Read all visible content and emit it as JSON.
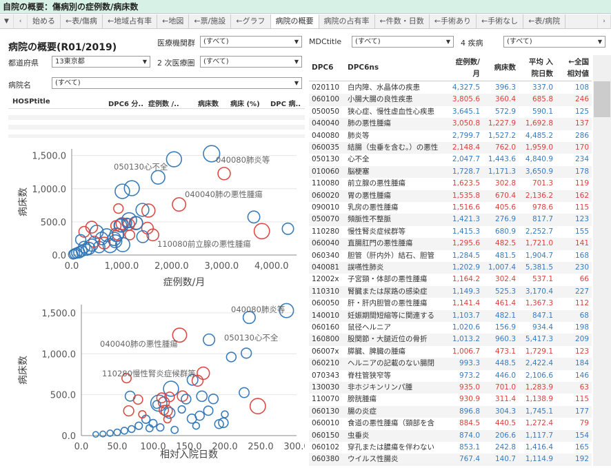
{
  "window": {
    "title": "自院の概要：傷病別の症例数/病床数"
  },
  "tabs": [
    "始める",
    "←表/傷病",
    "←地域占有率",
    "←地図",
    "←票/施設",
    "←グラフ",
    "病院の概要",
    "病院の占有率",
    "←件数・日数",
    "←手術あり",
    "←手術なし",
    "←表/病院"
  ],
  "active_tab": "病院の概要",
  "page": {
    "title": "病院の概要(R01/2019)"
  },
  "filters": {
    "institution_group": {
      "label": "医療機関群",
      "value": "(すべて)"
    },
    "mdc": {
      "label": "MDCtitle",
      "value": "(すべて)"
    },
    "four_diseases": {
      "label": "4 疾病",
      "value": "(すべて)"
    },
    "prefecture": {
      "label": "都道府県",
      "value": "13東京都"
    },
    "secondary_area": {
      "label": "2 次医療圏",
      "value": "(すべて)"
    },
    "hospital": {
      "label": "病院名",
      "value": "(すべて)"
    }
  },
  "hosp_table": {
    "headers": [
      "HOSPtitle",
      "DPC6 分..",
      "症例数 /..",
      "病床数",
      "病床 (%)",
      "DPC 病.."
    ]
  },
  "dpc_table": {
    "headers": {
      "c1": "DPC6",
      "c2": "DPC6ns",
      "cases": "症例数/\n月",
      "beds": "病床数",
      "avg_days": "平均 入\n院日数",
      "rel": "←全国\n相対値"
    },
    "rows": [
      [
        "020110",
        "白内障、水晶体の疾患",
        "4,327.5",
        "396.3",
        "337.0",
        "108",
        "b"
      ],
      [
        "060100",
        "小腸大腸の良性疾患",
        "3,805.6",
        "360.4",
        "685.8",
        "246",
        "r"
      ],
      [
        "050050",
        "狭心症、慢性虚血性心疾患",
        "3,645.1",
        "572.9",
        "590.1",
        "125",
        "b"
      ],
      [
        "040040",
        "肺の悪性腫瘍",
        "3,050.8",
        "1,227.9",
        "1,692.8",
        "137",
        "r"
      ],
      [
        "040080",
        "肺炎等",
        "2,799.7",
        "1,527.2",
        "4,485.2",
        "286",
        "b"
      ],
      [
        "060035",
        "結腸（虫垂を含む。）の悪性",
        "2,148.4",
        "762.0",
        "1,959.0",
        "170",
        "r"
      ],
      [
        "050130",
        "心不全",
        "2,047.7",
        "1,443.6",
        "4,840.9",
        "234",
        "b"
      ],
      [
        "010060",
        "脳梗塞",
        "1,728.7",
        "1,171.3",
        "3,650.9",
        "178",
        "b"
      ],
      [
        "110080",
        "前立腺の悪性腫瘍",
        "1,623.5",
        "302.8",
        "701.3",
        "119",
        "r"
      ],
      [
        "060020",
        "胃の悪性腫瘍",
        "1,535.8",
        "670.4",
        "2,136.2",
        "162",
        "r"
      ],
      [
        "090010",
        "乳房の悪性腫瘍",
        "1,516.6",
        "405.6",
        "978.6",
        "115",
        "r"
      ],
      [
        "050070",
        "頻脈性不整脈",
        "1,421.3",
        "276.9",
        "817.7",
        "123",
        "b"
      ],
      [
        "110280",
        "慢性腎炎症候群等",
        "1,415.3",
        "680.9",
        "2,252.7",
        "155",
        "b"
      ],
      [
        "060040",
        "直腸肛門の悪性腫瘍",
        "1,295.6",
        "482.5",
        "1,721.0",
        "141",
        "r"
      ],
      [
        "060340",
        "胆管（肝内外）結石、胆管",
        "1,284.5",
        "481.5",
        "1,904.7",
        "168",
        "b"
      ],
      [
        "040081",
        "誤嚥性肺炎",
        "1,202.9",
        "1,007.4",
        "5,381.5",
        "230",
        "b"
      ],
      [
        "12002x",
        "子宮頸・体部の悪性腫瘍",
        "1,164.2",
        "302.4",
        "537.1",
        "66",
        "r"
      ],
      [
        "110310",
        "腎臓または尿路の感染症",
        "1,149.3",
        "525.3",
        "3,170.4",
        "227",
        "b"
      ],
      [
        "060050",
        "肝・肝内胆管の悪性腫瘍",
        "1,141.4",
        "461.4",
        "1,367.3",
        "112",
        "r"
      ],
      [
        "140010",
        "妊娠期間短縮等に関連する",
        "1,103.7",
        "482.1",
        "847.1",
        "68",
        "b"
      ],
      [
        "060160",
        "鼠径ヘルニア",
        "1,020.6",
        "156.9",
        "934.4",
        "198",
        "b"
      ],
      [
        "160800",
        "股関節・大腿近位の骨折",
        "1,013.2",
        "960.3",
        "5,417.3",
        "209",
        "b"
      ],
      [
        "06007x",
        "膵臓、脾臓の腫瘍",
        "1,006.7",
        "473.1",
        "1,729.1",
        "123",
        "r"
      ],
      [
        "060210",
        "ヘルニアの記載のない腸閉",
        "993.3",
        "448.5",
        "2,422.4",
        "184",
        "b"
      ],
      [
        "070343",
        "脊柱管狭窄等",
        "973.2",
        "446.0",
        "2,106.6",
        "146",
        "b"
      ],
      [
        "130030",
        "非ホジキンリンパ腫",
        "935.0",
        "701.0",
        "1,283.9",
        "63",
        "r"
      ],
      [
        "110070",
        "膀胱腫瘍",
        "930.9",
        "311.4",
        "1,138.9",
        "115",
        "r"
      ],
      [
        "060130",
        "腸の炎症",
        "896.8",
        "304.3",
        "1,745.1",
        "177",
        "b"
      ],
      [
        "060010",
        "食道の悪性腫瘍（頸部を含",
        "884.5",
        "440.5",
        "1,272.4",
        "79",
        "r"
      ],
      [
        "060150",
        "虫垂炎",
        "874.0",
        "206.6",
        "1,117.7",
        "154",
        "b"
      ],
      [
        "060102",
        "穿孔または膿瘍を伴わない",
        "853.1",
        "242.8",
        "1,416.4",
        "165",
        "b"
      ],
      [
        "060380",
        "ウイルス性腸炎",
        "767.4",
        "140.7",
        "1,114.9",
        "192",
        "b"
      ]
    ]
  },
  "chart_data": [
    {
      "type": "scatter",
      "xlabel": "症例数/月",
      "ylabel": "病床数",
      "xlim": [
        0,
        4500
      ],
      "ylim": [
        0,
        1600
      ],
      "xticks": [
        "0.0",
        "1,000.0",
        "2,000.0",
        "3,000.0",
        "4,000.0"
      ],
      "yticks": [
        "0.0",
        "500.0",
        "1,000.0",
        "1,500.0"
      ],
      "annotations": [
        "050130心不全",
        "040080肺炎等",
        "040040肺の悪性腫瘍",
        "110080前立腺の悪性腫瘍"
      ],
      "points": [
        {
          "x": 4327.5,
          "y": 396.3,
          "s": 108,
          "c": "b"
        },
        {
          "x": 3805.6,
          "y": 360.4,
          "s": 246,
          "c": "r"
        },
        {
          "x": 3645.1,
          "y": 572.9,
          "s": 125,
          "c": "b"
        },
        {
          "x": 3050.8,
          "y": 1227.9,
          "s": 137,
          "c": "r"
        },
        {
          "x": 2799.7,
          "y": 1527.2,
          "s": 286,
          "c": "b"
        },
        {
          "x": 2148.4,
          "y": 762.0,
          "s": 170,
          "c": "r"
        },
        {
          "x": 2047.7,
          "y": 1443.6,
          "s": 234,
          "c": "b"
        },
        {
          "x": 1728.7,
          "y": 1171.3,
          "s": 178,
          "c": "b"
        },
        {
          "x": 1623.5,
          "y": 302.8,
          "s": 119,
          "c": "r"
        },
        {
          "x": 1535.8,
          "y": 670.4,
          "s": 162,
          "c": "r"
        },
        {
          "x": 1516.6,
          "y": 405.6,
          "s": 115,
          "c": "r"
        },
        {
          "x": 1421.3,
          "y": 276.9,
          "s": 123,
          "c": "b"
        },
        {
          "x": 1415.3,
          "y": 680.9,
          "s": 155,
          "c": "b"
        },
        {
          "x": 1295.6,
          "y": 482.5,
          "s": 141,
          "c": "r"
        },
        {
          "x": 1284.5,
          "y": 481.5,
          "s": 168,
          "c": "b"
        },
        {
          "x": 1202.9,
          "y": 1007.4,
          "s": 230,
          "c": "b"
        },
        {
          "x": 1164.2,
          "y": 302.4,
          "s": 66,
          "c": "r"
        },
        {
          "x": 1149.3,
          "y": 525.3,
          "s": 227,
          "c": "b"
        },
        {
          "x": 1141.4,
          "y": 461.4,
          "s": 112,
          "c": "r"
        },
        {
          "x": 1103.7,
          "y": 482.1,
          "s": 68,
          "c": "b"
        },
        {
          "x": 1020.6,
          "y": 156.9,
          "s": 198,
          "c": "b"
        },
        {
          "x": 1013.2,
          "y": 960.3,
          "s": 209,
          "c": "b"
        },
        {
          "x": 1006.7,
          "y": 473.1,
          "s": 123,
          "c": "r"
        },
        {
          "x": 993.3,
          "y": 448.5,
          "s": 184,
          "c": "b"
        },
        {
          "x": 973.2,
          "y": 446.0,
          "s": 146,
          "c": "b"
        },
        {
          "x": 935.0,
          "y": 701.0,
          "s": 63,
          "c": "r"
        },
        {
          "x": 930.9,
          "y": 311.4,
          "s": 115,
          "c": "r"
        },
        {
          "x": 896.8,
          "y": 304.3,
          "s": 177,
          "c": "b"
        },
        {
          "x": 884.5,
          "y": 440.5,
          "s": 79,
          "c": "r"
        },
        {
          "x": 874.0,
          "y": 206.6,
          "s": 154,
          "c": "b"
        },
        {
          "x": 853.1,
          "y": 242.8,
          "s": 165,
          "c": "b"
        },
        {
          "x": 767.4,
          "y": 140.7,
          "s": 192,
          "c": "b"
        },
        {
          "x": 700,
          "y": 300,
          "s": 150,
          "c": "b"
        },
        {
          "x": 650,
          "y": 180,
          "s": 120,
          "c": "r"
        },
        {
          "x": 600,
          "y": 250,
          "s": 140,
          "c": "b"
        },
        {
          "x": 550,
          "y": 120,
          "s": 110,
          "c": "b"
        },
        {
          "x": 500,
          "y": 350,
          "s": 160,
          "c": "b"
        },
        {
          "x": 450,
          "y": 200,
          "s": 100,
          "c": "r"
        },
        {
          "x": 400,
          "y": 150,
          "s": 130,
          "c": "b"
        },
        {
          "x": 350,
          "y": 100,
          "s": 120,
          "c": "b"
        },
        {
          "x": 300,
          "y": 80,
          "s": 100,
          "c": "b"
        },
        {
          "x": 250,
          "y": 120,
          "s": 110,
          "c": "b"
        },
        {
          "x": 200,
          "y": 60,
          "s": 90,
          "c": "b"
        },
        {
          "x": 150,
          "y": 40,
          "s": 100,
          "c": "b"
        },
        {
          "x": 100,
          "y": 30,
          "s": 80,
          "c": "b"
        },
        {
          "x": 60,
          "y": 20,
          "s": 70,
          "c": "b"
        },
        {
          "x": 30,
          "y": 10,
          "s": 60,
          "c": "b"
        },
        {
          "x": 400,
          "y": 420,
          "s": 120,
          "c": "r"
        },
        {
          "x": 250,
          "y": 350,
          "s": 90,
          "c": "r"
        },
        {
          "x": 180,
          "y": 230,
          "s": 80,
          "c": "b"
        }
      ]
    },
    {
      "type": "scatter",
      "xlabel": "相対入院日数",
      "ylabel": "病床数",
      "xlim": [
        0,
        300
      ],
      "ylim": [
        0,
        1600
      ],
      "xticks": [
        "0.0",
        "50.0",
        "100.0",
        "150.0",
        "200.0",
        "250.0",
        "300.0"
      ],
      "yticks": [
        "0.0",
        "500.0",
        "1,000.0",
        "1,500.0"
      ],
      "annotations": [
        "040080肺炎等",
        "040040肺の悪性腫瘍",
        "050130心不全",
        "110280慢性腎炎症候群等"
      ],
      "points": [
        {
          "x": 286,
          "y": 1527.2,
          "s": 3000,
          "c": "b"
        },
        {
          "x": 234,
          "y": 1443.6,
          "s": 2000,
          "c": "b"
        },
        {
          "x": 137,
          "y": 1227.9,
          "s": 3000,
          "c": "r"
        },
        {
          "x": 178,
          "y": 1171.3,
          "s": 1700,
          "c": "b"
        },
        {
          "x": 230,
          "y": 1007.4,
          "s": 1200,
          "c": "b"
        },
        {
          "x": 209,
          "y": 960.3,
          "s": 1000,
          "c": "b"
        },
        {
          "x": 170,
          "y": 762.0,
          "s": 2100,
          "c": "r"
        },
        {
          "x": 63,
          "y": 701.0,
          "s": 900,
          "c": "r"
        },
        {
          "x": 155,
          "y": 680.9,
          "s": 1400,
          "c": "b"
        },
        {
          "x": 162,
          "y": 670.4,
          "s": 1500,
          "c": "r"
        },
        {
          "x": 125,
          "y": 572.9,
          "s": 3600,
          "c": "b"
        },
        {
          "x": 227,
          "y": 525.3,
          "s": 1100,
          "c": "b"
        },
        {
          "x": 141,
          "y": 482.5,
          "s": 1300,
          "c": "r"
        },
        {
          "x": 68,
          "y": 482.1,
          "s": 1100,
          "c": "b"
        },
        {
          "x": 168,
          "y": 481.5,
          "s": 1300,
          "c": "b"
        },
        {
          "x": 123,
          "y": 473.1,
          "s": 1000,
          "c": "r"
        },
        {
          "x": 112,
          "y": 461.4,
          "s": 1100,
          "c": "r"
        },
        {
          "x": 184,
          "y": 448.5,
          "s": 1000,
          "c": "b"
        },
        {
          "x": 146,
          "y": 446.0,
          "s": 1000,
          "c": "b"
        },
        {
          "x": 79,
          "y": 440.5,
          "s": 900,
          "c": "r"
        },
        {
          "x": 115,
          "y": 405.6,
          "s": 1500,
          "c": "r"
        },
        {
          "x": 108,
          "y": 396.3,
          "s": 4300,
          "c": "b"
        },
        {
          "x": 246,
          "y": 360.4,
          "s": 3800,
          "c": "r"
        },
        {
          "x": 119,
          "y": 302.8,
          "s": 1600,
          "c": "r"
        },
        {
          "x": 115,
          "y": 311.4,
          "s": 900,
          "c": "r"
        },
        {
          "x": 177,
          "y": 304.3,
          "s": 900,
          "c": "b"
        },
        {
          "x": 66,
          "y": 302.4,
          "s": 1200,
          "c": "r"
        },
        {
          "x": 123,
          "y": 276.9,
          "s": 1400,
          "c": "b"
        },
        {
          "x": 165,
          "y": 242.8,
          "s": 850,
          "c": "b"
        },
        {
          "x": 154,
          "y": 206.6,
          "s": 870,
          "c": "b"
        },
        {
          "x": 198,
          "y": 156.9,
          "s": 1000,
          "c": "b"
        },
        {
          "x": 192,
          "y": 140.7,
          "s": 770,
          "c": "b"
        },
        {
          "x": 90,
          "y": 200,
          "s": 600,
          "c": "b"
        },
        {
          "x": 100,
          "y": 150,
          "s": 500,
          "c": "b"
        },
        {
          "x": 80,
          "y": 120,
          "s": 400,
          "c": "b"
        },
        {
          "x": 110,
          "y": 100,
          "s": 400,
          "c": "b"
        },
        {
          "x": 70,
          "y": 80,
          "s": 300,
          "c": "b"
        },
        {
          "x": 60,
          "y": 60,
          "s": 300,
          "c": "b"
        },
        {
          "x": 95,
          "y": 90,
          "s": 350,
          "c": "b"
        },
        {
          "x": 50,
          "y": 40,
          "s": 250,
          "c": "b"
        },
        {
          "x": 40,
          "y": 30,
          "s": 200,
          "c": "b"
        },
        {
          "x": 30,
          "y": 20,
          "s": 150,
          "c": "b"
        },
        {
          "x": 20,
          "y": 15,
          "s": 120,
          "c": "b"
        },
        {
          "x": 130,
          "y": 70,
          "s": 350,
          "c": "b"
        },
        {
          "x": 120,
          "y": 200,
          "s": 400,
          "c": "r"
        },
        {
          "x": 140,
          "y": 320,
          "s": 400,
          "c": "b"
        },
        {
          "x": 200,
          "y": 260,
          "s": 300,
          "c": "b"
        },
        {
          "x": 160,
          "y": 120,
          "s": 300,
          "c": "b"
        },
        {
          "x": 85,
          "y": 260,
          "s": 400,
          "c": "r"
        },
        {
          "x": 105,
          "y": 380,
          "s": 500,
          "c": "b"
        }
      ]
    }
  ],
  "colors": {
    "blue": "#2e75b6",
    "red": "#d9423d",
    "titlebar": "#d8f1e6"
  }
}
